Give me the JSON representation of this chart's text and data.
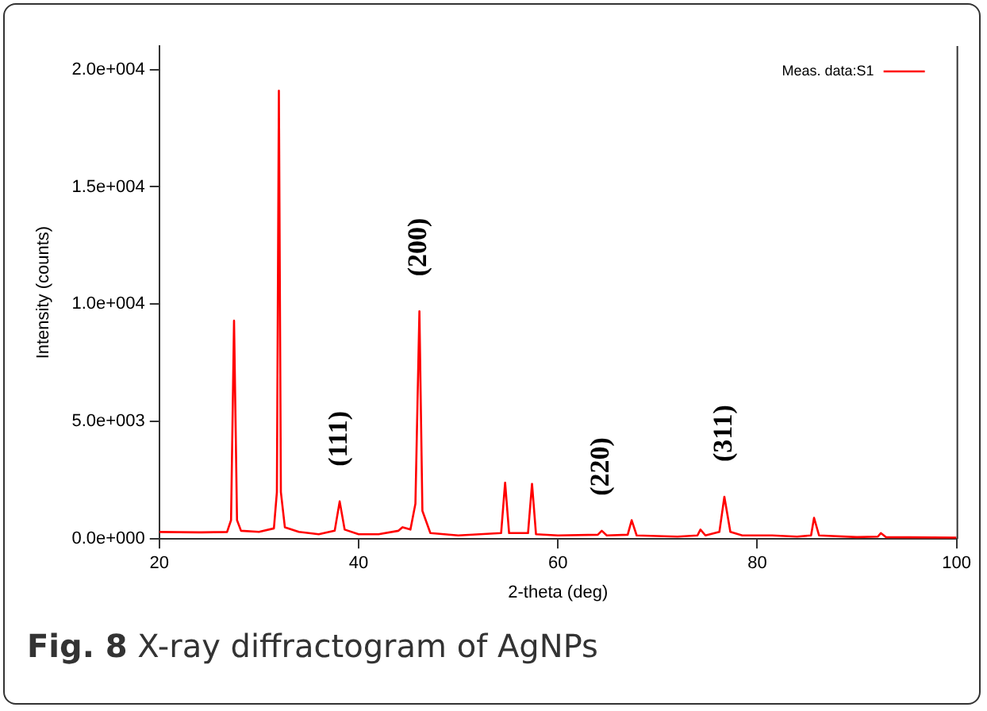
{
  "chart_data": {
    "type": "line",
    "xlabel": "2-theta (deg)",
    "ylabel": "Intensity (counts)",
    "xlim": [
      20,
      100
    ],
    "xticks": [
      20,
      40,
      60,
      80,
      100
    ],
    "ylim": [
      0,
      21000
    ],
    "yticks": [
      {
        "value": 0,
        "label": "0.0e+000"
      },
      {
        "value": 5000,
        "label": "5.0e+003"
      },
      {
        "value": 10000,
        "label": "1.0e+004"
      },
      {
        "value": 15000,
        "label": "1.5e+004"
      },
      {
        "value": 20000,
        "label": "2.0e+004"
      }
    ],
    "grid": false,
    "legend": "top right",
    "marker": "none",
    "line_style": "solid",
    "series": [
      {
        "name": "Meas. data:S1",
        "color": "#ff0000",
        "x": [
          20,
          24,
          26.8,
          27.2,
          27.5,
          27.8,
          28.2,
          30,
          31.5,
          31.8,
          32.0,
          32.2,
          32.6,
          34,
          36,
          37.6,
          38.1,
          38.6,
          40,
          42,
          44,
          44.4,
          45.2,
          45.7,
          46.1,
          46.4,
          47.2,
          50,
          54.3,
          54.7,
          55.1,
          57.0,
          57.4,
          57.8,
          60,
          64.0,
          64.4,
          64.9,
          67.0,
          67.4,
          67.9,
          72,
          74.0,
          74.3,
          74.8,
          76.2,
          76.7,
          77.3,
          78.5,
          81.5,
          84,
          85.4,
          85.7,
          86.2,
          90,
          92.1,
          92.4,
          92.9,
          100
        ],
        "values": [
          300,
          280,
          300,
          800,
          9300,
          800,
          350,
          300,
          450,
          2000,
          19100,
          2000,
          500,
          300,
          200,
          350,
          1600,
          400,
          200,
          200,
          350,
          500,
          400,
          1500,
          9700,
          1200,
          250,
          150,
          250,
          2400,
          250,
          250,
          2350,
          200,
          150,
          180,
          350,
          150,
          180,
          800,
          150,
          100,
          150,
          400,
          150,
          300,
          1800,
          300,
          150,
          150,
          100,
          150,
          900,
          150,
          80,
          100,
          250,
          80,
          60
        ]
      }
    ],
    "annotations": [
      {
        "text": "(111)",
        "x": 38.1,
        "y": 1600
      },
      {
        "text": "(200)",
        "x": 46.1,
        "y": 9700
      },
      {
        "text": "(220)",
        "x": 64.4,
        "y": 350
      },
      {
        "text": "(311)",
        "x": 76.7,
        "y": 1800
      },
      "Fig. 8 X-ray diffractogram of AgNPs"
    ]
  }
}
